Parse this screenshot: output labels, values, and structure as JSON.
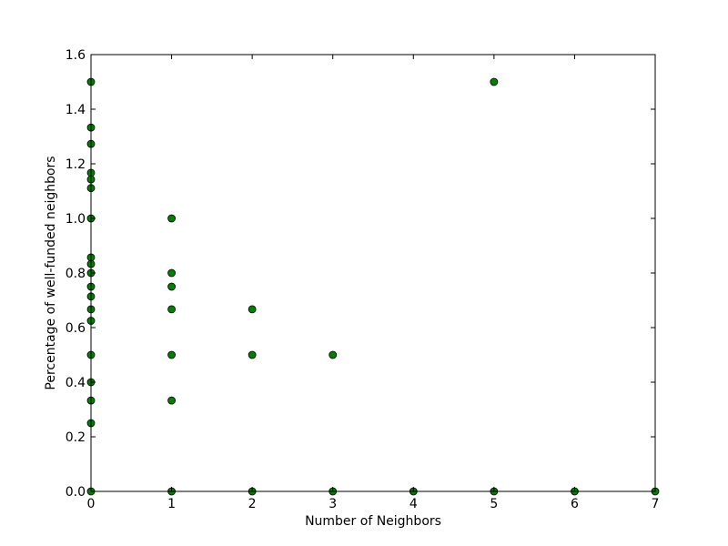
{
  "chart_data": {
    "type": "scatter",
    "xlabel": "Number of Neighbors",
    "ylabel": "Percentage of well-funded neighbors",
    "xlim": [
      0,
      7
    ],
    "ylim": [
      0,
      1.6
    ],
    "xticks": [
      0,
      1,
      2,
      3,
      4,
      5,
      6,
      7
    ],
    "yticks": [
      0.0,
      0.2,
      0.4,
      0.6,
      0.8,
      1.0,
      1.2,
      1.4,
      1.6
    ],
    "xtick_labels": [
      "0",
      "1",
      "2",
      "3",
      "4",
      "5",
      "6",
      "7"
    ],
    "ytick_labels": [
      "0.0",
      "0.2",
      "0.4",
      "0.6",
      "0.8",
      "1.0",
      "1.2",
      "1.4",
      "1.6"
    ],
    "grid": false,
    "marker_color": "#008000",
    "marker_edge": "#000000",
    "points": [
      {
        "x": 0,
        "y": 1.5
      },
      {
        "x": 0,
        "y": 1.333
      },
      {
        "x": 0,
        "y": 1.273
      },
      {
        "x": 0,
        "y": 1.167
      },
      {
        "x": 0,
        "y": 1.143
      },
      {
        "x": 0,
        "y": 1.111
      },
      {
        "x": 0,
        "y": 1.0
      },
      {
        "x": 0,
        "y": 0.857
      },
      {
        "x": 0,
        "y": 0.833
      },
      {
        "x": 0,
        "y": 0.8
      },
      {
        "x": 0,
        "y": 0.75
      },
      {
        "x": 0,
        "y": 0.714
      },
      {
        "x": 0,
        "y": 0.667
      },
      {
        "x": 0,
        "y": 0.625
      },
      {
        "x": 0,
        "y": 0.5
      },
      {
        "x": 0,
        "y": 0.4
      },
      {
        "x": 0,
        "y": 0.333
      },
      {
        "x": 0,
        "y": 0.25
      },
      {
        "x": 0,
        "y": 0.0
      },
      {
        "x": 1,
        "y": 1.0
      },
      {
        "x": 1,
        "y": 0.8
      },
      {
        "x": 1,
        "y": 0.75
      },
      {
        "x": 1,
        "y": 0.667
      },
      {
        "x": 1,
        "y": 0.5
      },
      {
        "x": 1,
        "y": 0.333
      },
      {
        "x": 1,
        "y": 0.0
      },
      {
        "x": 2,
        "y": 0.667
      },
      {
        "x": 2,
        "y": 0.5
      },
      {
        "x": 2,
        "y": 0.0
      },
      {
        "x": 3,
        "y": 0.5
      },
      {
        "x": 3,
        "y": 0.0
      },
      {
        "x": 4,
        "y": 0.0
      },
      {
        "x": 5,
        "y": 1.5
      },
      {
        "x": 5,
        "y": 0.0
      },
      {
        "x": 6,
        "y": 0.0
      },
      {
        "x": 7,
        "y": 0.0
      }
    ]
  }
}
